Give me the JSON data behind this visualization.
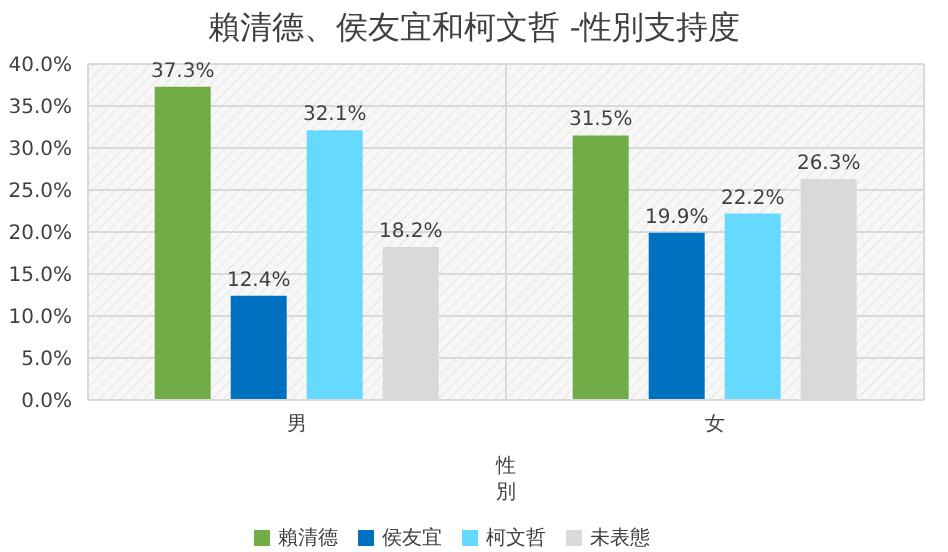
{
  "chart_data": {
    "type": "bar",
    "title": "賴清德、侯友宜和柯文哲 -性別支持度",
    "xlabel": "性別",
    "categories": [
      "男",
      "女"
    ],
    "series": [
      {
        "name": "賴清德",
        "color": "#70ad47",
        "values": [
          37.3,
          31.5
        ],
        "value_labels": [
          "37.3%",
          "31.5%"
        ]
      },
      {
        "name": "侯友宜",
        "color": "#0070c0",
        "values": [
          12.4,
          19.9
        ],
        "value_labels": [
          "12.4%",
          "19.9%"
        ]
      },
      {
        "name": "柯文哲",
        "color": "#66d9ff",
        "values": [
          32.1,
          22.2
        ],
        "value_labels": [
          "32.1%",
          "22.2%"
        ]
      },
      {
        "name": "未表態",
        "color": "#d9d9d9",
        "values": [
          18.2,
          26.3
        ],
        "value_labels": [
          "18.2%",
          "26.3%"
        ]
      }
    ],
    "ylim": [
      0,
      40
    ],
    "yticks": [
      {
        "value": 0,
        "label": "0.0%"
      },
      {
        "value": 5,
        "label": "5.0%"
      },
      {
        "value": 10,
        "label": "10.0%"
      },
      {
        "value": 15,
        "label": "15.0%"
      },
      {
        "value": 20,
        "label": "20.0%"
      },
      {
        "value": 25,
        "label": "25.0%"
      },
      {
        "value": 30,
        "label": "30.0%"
      },
      {
        "value": 35,
        "label": "35.0%"
      },
      {
        "value": 40,
        "label": "40.0%"
      }
    ],
    "grid": true,
    "legend": "bottom"
  }
}
